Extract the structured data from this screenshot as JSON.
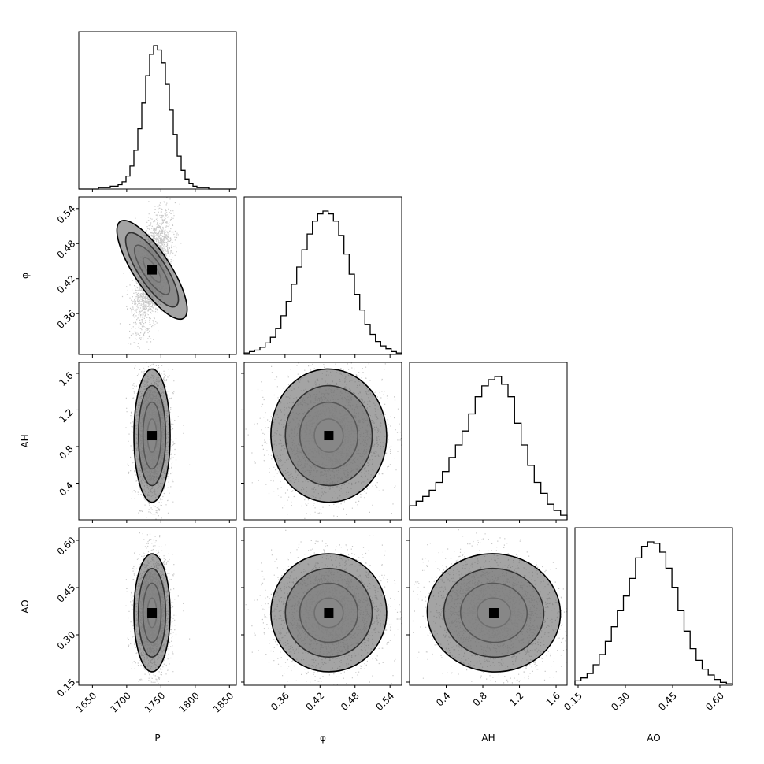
{
  "chart_data": {
    "type": "corner",
    "parameters": [
      {
        "name": "P",
        "label": "P",
        "range": [
          1630,
          1860
        ],
        "ticks": [
          1650,
          1700,
          1750,
          1800,
          1850
        ],
        "mean": 1737,
        "sd": 12
      },
      {
        "name": "phi",
        "label": "φ",
        "range": [
          0.29,
          0.56
        ],
        "ticks": [
          0.36,
          0.42,
          0.48,
          0.54
        ],
        "mean": 0.435,
        "sd": 0.045
      },
      {
        "name": "AH",
        "label": "AH",
        "range": [
          0.0,
          1.72
        ],
        "ticks": [
          0.4,
          0.8,
          1.2,
          1.6
        ],
        "mean": 0.92,
        "sd": 0.33
      },
      {
        "name": "AO",
        "label": "AO",
        "range": [
          0.14,
          0.64
        ],
        "ticks": [
          0.15,
          0.3,
          0.45,
          0.6
        ],
        "mean": 0.37,
        "sd": 0.085
      }
    ],
    "tick_labels": {
      "P": [
        "1650",
        "1700",
        "1750",
        "1800",
        "1850"
      ],
      "phi": [
        "0.36",
        "0.42",
        "0.48",
        "0.54"
      ],
      "AH": [
        "0.4",
        "0.8",
        "1.2",
        "1.6"
      ],
      "AO": [
        "0.15",
        "0.30",
        "0.45",
        "0.60"
      ]
    },
    "histograms": {
      "P": [
        0,
        0,
        0,
        0,
        0,
        1,
        1,
        1,
        2,
        2,
        3,
        5,
        9,
        16,
        27,
        42,
        60,
        79,
        94,
        100,
        97,
        88,
        73,
        55,
        38,
        23,
        13,
        7,
        4,
        2,
        1,
        1,
        1,
        0,
        0,
        0,
        0,
        0,
        0,
        0
      ],
      "phi": [
        1,
        2,
        3,
        5,
        8,
        12,
        18,
        27,
        37,
        49,
        61,
        73,
        84,
        93,
        98,
        100,
        98,
        93,
        83,
        70,
        56,
        42,
        31,
        21,
        14,
        9,
        6,
        4,
        2,
        1
      ],
      "AH": [
        9,
        12,
        15,
        19,
        24,
        31,
        40,
        48,
        57,
        68,
        79,
        86,
        90,
        92,
        87,
        79,
        62,
        48,
        35,
        24,
        17,
        10,
        6,
        3
      ],
      "AO": [
        3,
        5,
        8,
        14,
        21,
        30,
        40,
        51,
        61,
        73,
        87,
        95,
        98,
        97,
        91,
        80,
        67,
        51,
        37,
        25,
        17,
        11,
        7,
        4,
        2,
        1
      ]
    },
    "correlations": {
      "phi_P": 0.55,
      "AH_P": 0.0,
      "AH_phi": 0.05,
      "AO_P": 0.0,
      "AO_phi": 0.02,
      "AO_AH": -0.15
    },
    "contour_levels": [
      0.5,
      1.0,
      1.5,
      2.0
    ]
  }
}
